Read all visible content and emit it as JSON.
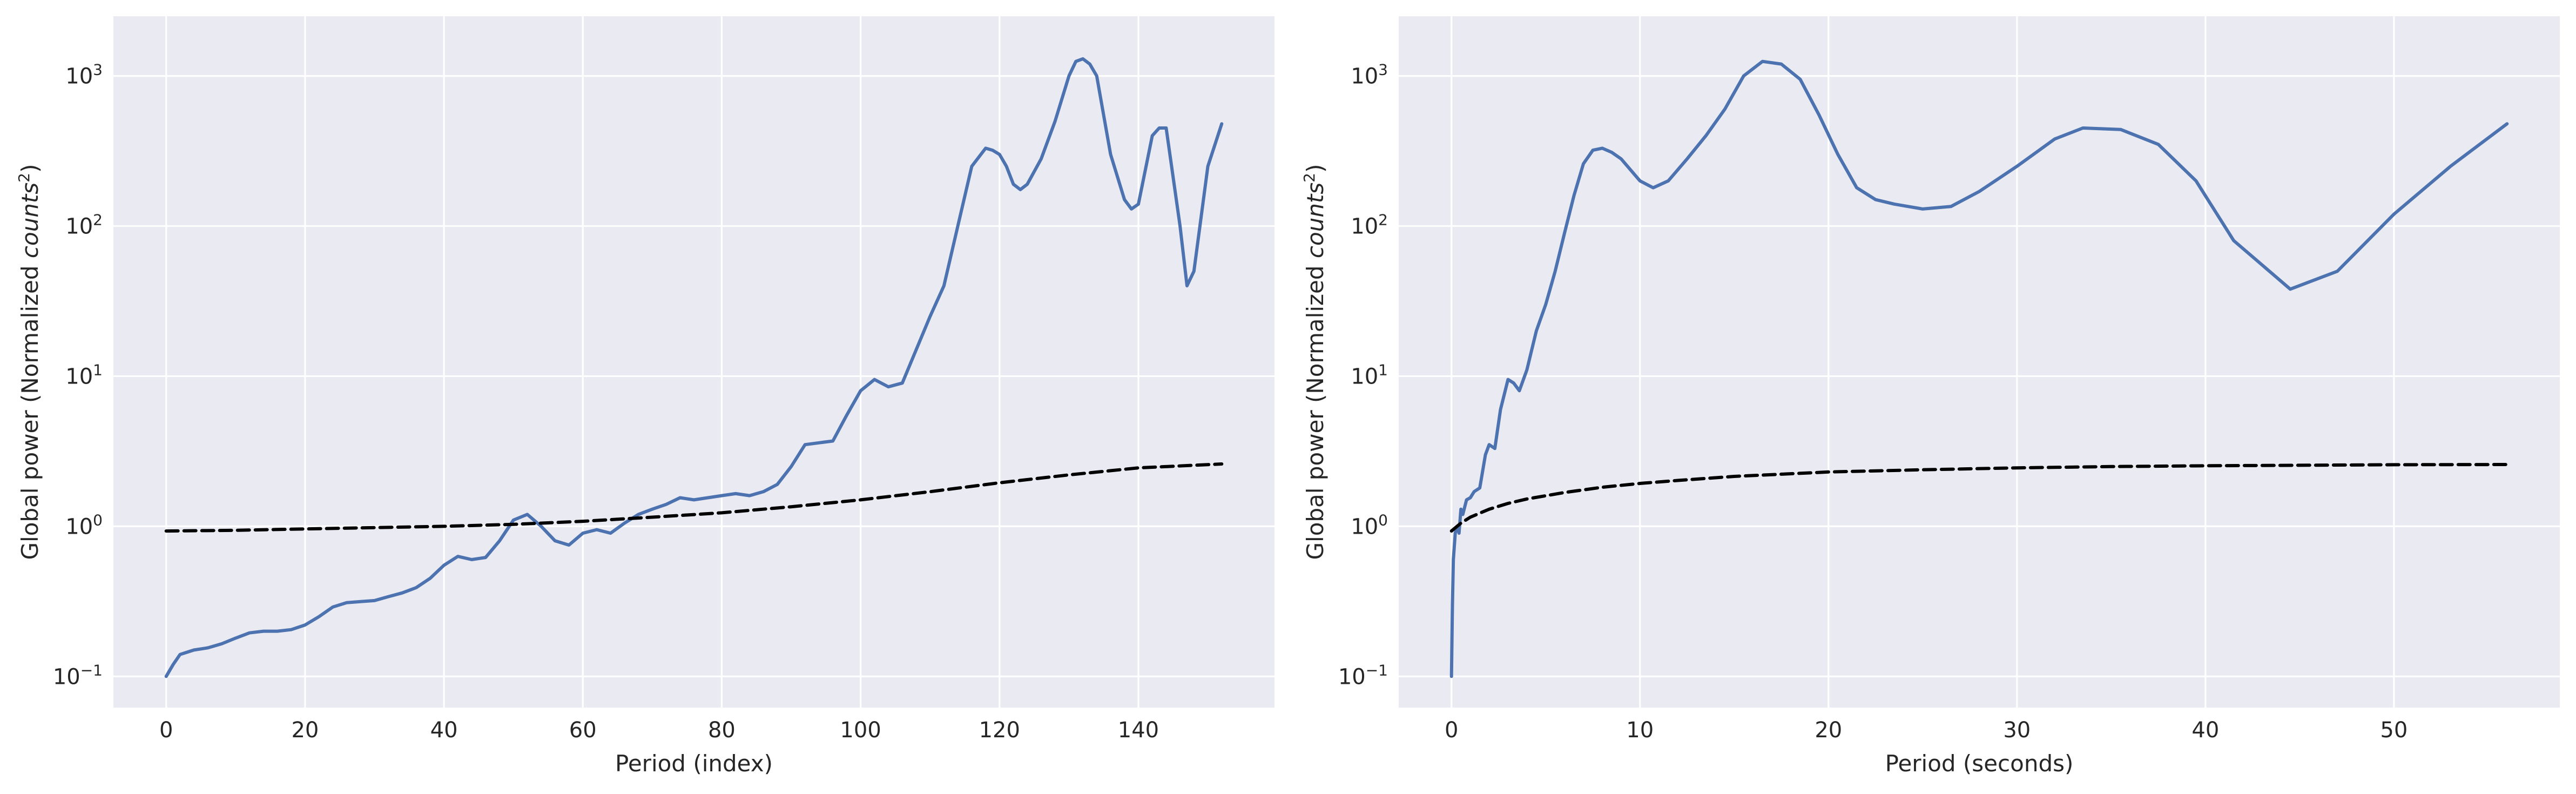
{
  "colors": {
    "background": "#eaeaf2",
    "grid": "#ffffff",
    "series_line": "#4c72b0",
    "threshold_line": "#000000",
    "text": "#262626"
  },
  "chart_data": [
    {
      "type": "line",
      "xlabel": "Period (index)",
      "ylabel_prefix": "Global power (Normalized ",
      "ylabel_var": "counts",
      "ylabel_sup": "2",
      "ylabel_suffix": ")",
      "xlim": [
        -7.6,
        159.6
      ],
      "ylim": [
        0.062,
        2500
      ],
      "yscale": "log",
      "grid": true,
      "legend": "none",
      "xticks": [
        0,
        20,
        40,
        60,
        80,
        100,
        120,
        140
      ],
      "xtick_labels": [
        "0",
        "20",
        "40",
        "60",
        "80",
        "100",
        "120",
        "140"
      ],
      "yticks": [
        0.1,
        1,
        10,
        100,
        1000
      ],
      "ytick_labels": [
        {
          "base": "10",
          "exp": "−1"
        },
        {
          "base": "10",
          "exp": "0"
        },
        {
          "base": "10",
          "exp": "1"
        },
        {
          "base": "10",
          "exp": "2"
        },
        {
          "base": "10",
          "exp": "3"
        }
      ],
      "series": [
        {
          "style": "solid",
          "x": [
            0,
            1,
            2,
            3,
            4,
            6,
            8,
            10,
            12,
            14,
            16,
            18,
            20,
            22,
            24,
            26,
            28,
            30,
            32,
            34,
            36,
            38,
            40,
            42,
            44,
            46,
            48,
            50,
            52,
            54,
            56,
            58,
            60,
            62,
            64,
            66,
            68,
            70,
            72,
            74,
            76,
            78,
            80,
            82,
            84,
            86,
            88,
            90,
            92,
            94,
            96,
            98,
            100,
            102,
            104,
            106,
            108,
            110,
            112,
            114,
            116,
            118,
            119,
            120,
            121,
            122,
            123,
            124,
            126,
            128,
            130,
            131,
            132,
            133,
            134,
            136,
            138,
            139,
            140,
            142,
            143,
            144,
            146,
            147,
            148,
            150,
            152
          ],
          "y": [
            0.1,
            0.12,
            0.14,
            0.145,
            0.15,
            0.155,
            0.165,
            0.18,
            0.195,
            0.2,
            0.2,
            0.205,
            0.22,
            0.25,
            0.29,
            0.31,
            0.315,
            0.32,
            0.34,
            0.36,
            0.39,
            0.45,
            0.55,
            0.63,
            0.6,
            0.62,
            0.8,
            1.1,
            1.2,
            1.0,
            0.8,
            0.75,
            0.9,
            0.95,
            0.9,
            1.05,
            1.2,
            1.3,
            1.4,
            1.55,
            1.5,
            1.55,
            1.6,
            1.65,
            1.6,
            1.7,
            1.9,
            2.5,
            3.5,
            3.6,
            3.7,
            5.5,
            8.0,
            9.5,
            8.5,
            9.0,
            15.0,
            25.0,
            40.0,
            100,
            250,
            330,
            320,
            300,
            250,
            190,
            175,
            190,
            280,
            500,
            1000,
            1250,
            1300,
            1200,
            1000,
            300,
            150,
            130,
            140,
            400,
            450,
            450,
            100,
            40,
            50,
            250,
            480
          ]
        },
        {
          "style": "dashed",
          "x": [
            0,
            10,
            20,
            30,
            40,
            50,
            60,
            70,
            80,
            90,
            100,
            110,
            120,
            130,
            140,
            152
          ],
          "y": [
            0.93,
            0.94,
            0.96,
            0.98,
            1.0,
            1.03,
            1.08,
            1.15,
            1.23,
            1.35,
            1.5,
            1.7,
            1.95,
            2.2,
            2.45,
            2.6
          ]
        }
      ]
    },
    {
      "type": "line",
      "xlabel": "Period (seconds)",
      "ylabel_prefix": "Global power (Normalized ",
      "ylabel_var": "counts",
      "ylabel_sup": "2",
      "ylabel_suffix": ")",
      "xlim": [
        -2.8,
        58.8
      ],
      "ylim": [
        0.062,
        2500
      ],
      "yscale": "log",
      "grid": true,
      "legend": "none",
      "xticks": [
        0,
        10,
        20,
        30,
        40,
        50
      ],
      "xtick_labels": [
        "0",
        "10",
        "20",
        "30",
        "40",
        "50"
      ],
      "yticks": [
        0.1,
        1,
        10,
        100,
        1000
      ],
      "ytick_labels": [
        {
          "base": "10",
          "exp": "−1"
        },
        {
          "base": "10",
          "exp": "0"
        },
        {
          "base": "10",
          "exp": "1"
        },
        {
          "base": "10",
          "exp": "2"
        },
        {
          "base": "10",
          "exp": "3"
        }
      ],
      "series": [
        {
          "style": "solid",
          "x": [
            0,
            0.05,
            0.1,
            0.2,
            0.3,
            0.4,
            0.5,
            0.6,
            0.8,
            1.0,
            1.2,
            1.5,
            1.8,
            2.0,
            2.3,
            2.6,
            3.0,
            3.3,
            3.6,
            4.0,
            4.5,
            5.0,
            5.5,
            6.0,
            6.5,
            7.0,
            7.5,
            8.0,
            8.5,
            9.0,
            10.0,
            10.7,
            11.5,
            12.5,
            13.5,
            14.5,
            15.5,
            16.5,
            17.5,
            18.5,
            19.5,
            20.5,
            21.5,
            22.5,
            23.5,
            25,
            26.5,
            28,
            30,
            32,
            33.5,
            35.5,
            37.5,
            39.5,
            41.5,
            44.5,
            47,
            50,
            53,
            56
          ],
          "y": [
            0.1,
            0.3,
            0.6,
            0.9,
            1.0,
            0.9,
            1.3,
            1.2,
            1.5,
            1.55,
            1.7,
            1.8,
            3.0,
            3.5,
            3.3,
            6.0,
            9.5,
            9.0,
            8.0,
            11.0,
            20.0,
            30.0,
            50.0,
            90.0,
            160,
            260,
            320,
            330,
            310,
            280,
            200,
            180,
            200,
            280,
            400,
            600,
            1000,
            1250,
            1200,
            950,
            550,
            300,
            180,
            150,
            140,
            130,
            135,
            170,
            250,
            380,
            450,
            440,
            350,
            200,
            80,
            38,
            50,
            120,
            250,
            480
          ]
        },
        {
          "style": "dashed",
          "x": [
            0,
            0.5,
            1,
            2,
            3,
            4,
            6,
            8,
            10,
            12,
            15,
            20,
            25,
            30,
            35,
            40,
            45,
            50,
            56
          ],
          "y": [
            0.93,
            1.05,
            1.15,
            1.3,
            1.42,
            1.52,
            1.68,
            1.82,
            1.93,
            2.02,
            2.15,
            2.3,
            2.38,
            2.45,
            2.5,
            2.53,
            2.55,
            2.57,
            2.58
          ]
        }
      ]
    }
  ]
}
